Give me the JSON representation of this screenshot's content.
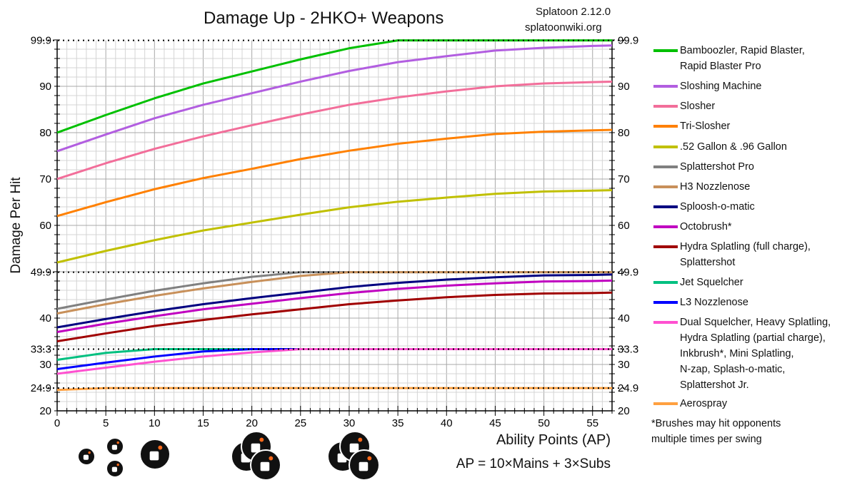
{
  "chart_data": {
    "type": "line",
    "title": "Damage Up - 2HKO+ Weapons",
    "source": [
      "Splatoon 2.12.0",
      "splatoonwiki.org"
    ],
    "xlabel": "Ability Points (AP)",
    "xnote": "AP = 10×Mains + 3×Subs",
    "ylabel": "Damage Per Hit",
    "xlim": [
      0,
      57
    ],
    "ylim": [
      20,
      99.9
    ],
    "xticks": [
      0,
      5,
      10,
      15,
      20,
      25,
      30,
      35,
      40,
      45,
      50,
      55
    ],
    "yticks": [
      "20",
      "24.9",
      "30",
      "33.3",
      "40",
      "49.9",
      "60",
      "70",
      "80",
      "90",
      "99.9"
    ],
    "cap_lines": [
      99.9,
      49.9,
      33.3,
      24.9
    ],
    "grid": true,
    "legend": "right",
    "x": [
      0,
      5,
      10,
      15,
      20,
      25,
      30,
      35,
      40,
      45,
      50,
      55,
      57
    ],
    "series": [
      {
        "name": "Bamboozler, Rapid Blaster,\nRapid Blaster Pro",
        "color": "#00c000",
        "values": [
          80,
          83.8,
          87.4,
          90.6,
          93.2,
          95.8,
          98.2,
          99.9,
          99.9,
          99.9,
          99.9,
          99.9,
          99.9
        ]
      },
      {
        "name": "Sloshing Machine",
        "color": "#b25ee0",
        "values": [
          76,
          79.6,
          83.1,
          86.0,
          88.5,
          91.0,
          93.3,
          95.2,
          96.5,
          97.7,
          98.3,
          98.7,
          98.8
        ]
      },
      {
        "name": "Slosher",
        "color": "#f26e9a",
        "values": [
          70,
          73.4,
          76.5,
          79.2,
          81.6,
          83.9,
          86.0,
          87.6,
          88.9,
          90.0,
          90.6,
          90.9,
          91.0
        ]
      },
      {
        "name": "Tri-Slosher",
        "color": "#ff8000",
        "values": [
          62,
          65.0,
          67.8,
          70.2,
          72.2,
          74.3,
          76.1,
          77.6,
          78.7,
          79.7,
          80.2,
          80.5,
          80.6
        ]
      },
      {
        "name": ".52 Gallon & .96 Gallon",
        "color": "#c0c000",
        "values": [
          52,
          54.5,
          56.8,
          58.9,
          60.6,
          62.3,
          63.9,
          65.1,
          66.0,
          66.8,
          67.3,
          67.5,
          67.6
        ]
      },
      {
        "name": "Splattershot Pro",
        "color": "#808080",
        "values": [
          42,
          44.0,
          45.9,
          47.5,
          48.9,
          49.9,
          49.9,
          49.9,
          49.9,
          49.9,
          49.9,
          49.9,
          49.9
        ]
      },
      {
        "name": "H3 Nozzlenose",
        "color": "#c8905a",
        "values": [
          41,
          43.0,
          44.8,
          46.4,
          47.8,
          49.1,
          49.9,
          49.9,
          49.9,
          49.9,
          49.9,
          49.9,
          49.9
        ]
      },
      {
        "name": "Sploosh-o-matic",
        "color": "#000080",
        "values": [
          38,
          39.8,
          41.5,
          43.0,
          44.3,
          45.5,
          46.7,
          47.6,
          48.3,
          48.8,
          49.2,
          49.3,
          49.4
        ]
      },
      {
        "name": "Octobrush*",
        "color": "#c000c0",
        "values": [
          37,
          38.8,
          40.4,
          41.9,
          43.1,
          44.3,
          45.4,
          46.3,
          47.0,
          47.5,
          47.9,
          48.0,
          48.1
        ]
      },
      {
        "name": "Hydra Splatling (full charge),\nSplattershot",
        "color": "#a00000",
        "values": [
          35,
          36.7,
          38.3,
          39.6,
          40.8,
          41.9,
          43.0,
          43.8,
          44.5,
          45.0,
          45.3,
          45.4,
          45.5
        ]
      },
      {
        "name": "Jet Squelcher",
        "color": "#00c080",
        "values": [
          31,
          32.5,
          33.3,
          33.3,
          33.3,
          33.3,
          33.3,
          33.3,
          33.3,
          33.3,
          33.3,
          33.3,
          33.3
        ]
      },
      {
        "name": "L3 Nozzlenose",
        "color": "#0000ff",
        "values": [
          29,
          30.4,
          31.7,
          32.8,
          33.3,
          33.3,
          33.3,
          33.3,
          33.3,
          33.3,
          33.3,
          33.3,
          33.3
        ]
      },
      {
        "name": "Dual Squelcher, Heavy Splatling,\nHydra Splatling (partial charge),\nInkbrush*, Mini Splatling,\nN-zap, Splash-o-matic,\nSplattershot Jr.",
        "color": "#ff50d0",
        "values": [
          28,
          29.3,
          30.6,
          31.7,
          32.6,
          33.3,
          33.3,
          33.3,
          33.3,
          33.3,
          33.3,
          33.3,
          33.3
        ]
      },
      {
        "name": "Aerospray",
        "color": "#ffa040",
        "values": [
          24.5,
          24.9,
          24.9,
          24.9,
          24.9,
          24.9,
          24.9,
          24.9,
          24.9,
          24.9,
          24.9,
          24.9,
          24.9
        ]
      }
    ],
    "footnote": "*Brushes may hit opponents\nmultiple times per swing"
  }
}
